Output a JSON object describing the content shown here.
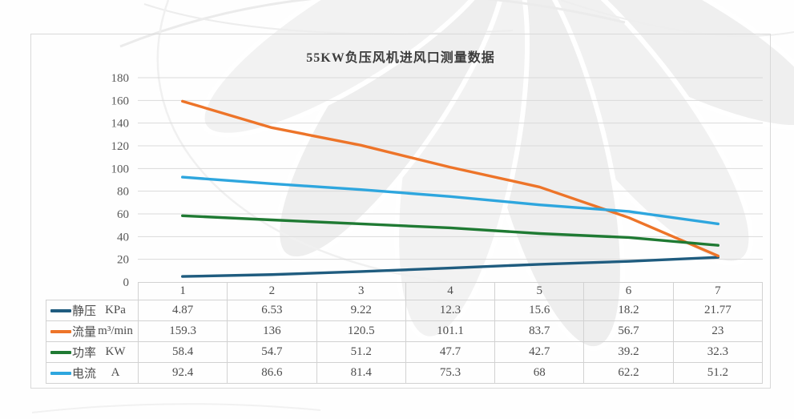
{
  "title": "55KW负压风机进风口测量数据",
  "chart_data": {
    "type": "line",
    "title": "55KW负压风机进风口测量数据",
    "categories": [
      "1",
      "2",
      "3",
      "4",
      "5",
      "6",
      "7"
    ],
    "ylim": [
      0,
      180
    ],
    "ytick_step": 20,
    "grid": true,
    "legend_position": "table-left-column",
    "series": [
      {
        "name": "静压",
        "unit": "KPa",
        "color": "#1F5C7F",
        "values": [
          4.87,
          6.53,
          9.22,
          12.3,
          15.6,
          18.2,
          21.77
        ]
      },
      {
        "name": "流量",
        "unit": "m³/min",
        "color": "#ED7429",
        "values": [
          159.3,
          136,
          120.5,
          101.1,
          83.7,
          56.7,
          23
        ]
      },
      {
        "name": "功率",
        "unit": "KW",
        "color": "#1F7A33",
        "values": [
          58.4,
          54.7,
          51.2,
          47.7,
          42.7,
          39.2,
          32.3
        ]
      },
      {
        "name": "电流",
        "unit": "A",
        "color": "#2EA6DE",
        "values": [
          92.4,
          86.6,
          81.4,
          75.3,
          68,
          62.2,
          51.2
        ]
      }
    ]
  },
  "colors": {
    "grid": "#d9d9d9",
    "axis_text": "#595959",
    "table_border": "#d2d2d2",
    "table_text": "#4d4d4d",
    "title_text": "#3c3c3c",
    "card_border": "#d9d9d9",
    "watermark": "#efefef"
  }
}
